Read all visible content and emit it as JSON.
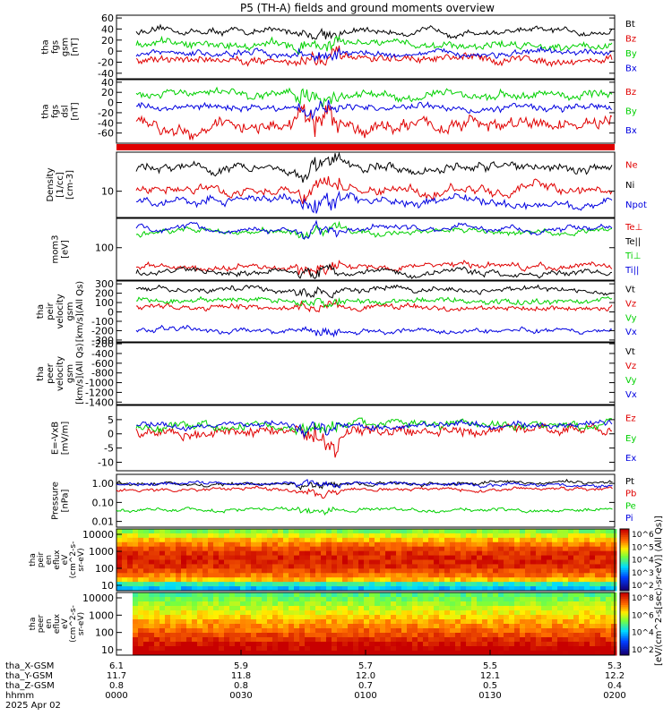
{
  "title": "P5 (TH-A) fields and ground moments overview",
  "colors": {
    "black": "#000000",
    "red": "#e00000",
    "green": "#00d000",
    "blue": "#0000e0"
  },
  "chart_data": {
    "type": "line",
    "x_range": [
      "2025-04-02 00:00",
      "2025-04-02 02:00"
    ],
    "x_ticks": [
      "0000",
      "0030",
      "0100",
      "0130",
      "0200"
    ],
    "ephemeris": [
      {
        "label": "tha_X-GSM",
        "values": [
          "6.1",
          "5.9",
          "5.7",
          "5.5",
          "5.3"
        ]
      },
      {
        "label": "tha_Y-GSM",
        "values": [
          "11.7",
          "11.8",
          "12.0",
          "12.1",
          "12.2"
        ]
      },
      {
        "label": "tha_Z-GSM",
        "values": [
          "0.8",
          "0.8",
          "0.7",
          "0.5",
          "0.4"
        ]
      },
      {
        "label": "hhmm",
        "values": [
          "0000",
          "0030",
          "0100",
          "0130",
          "0200"
        ]
      }
    ],
    "date_label": "2025 Apr 02",
    "spectrogram_colorbar_label": "[eV/(cm^2-s[sec)-sr-eV)] (All Qs)]",
    "panels": [
      {
        "ylabel": [
          "tha",
          "fgs",
          "gsm",
          "[nT]"
        ],
        "ylim": [
          -50,
          65
        ],
        "yticks": [
          "60",
          "40",
          "20",
          "0",
          "-20",
          "-40"
        ],
        "series": [
          {
            "name": "Bt",
            "color": "black",
            "base": 35,
            "amp": 8
          },
          {
            "name": "Bz",
            "color": "red",
            "base": -15,
            "amp": 10
          },
          {
            "name": "By",
            "color": "green",
            "base": 12,
            "amp": 10
          },
          {
            "name": "Bx",
            "color": "blue",
            "base": -5,
            "amp": 8
          }
        ]
      },
      {
        "ylabel": [
          "tha",
          "fgs",
          "dsl",
          "[nT]"
        ],
        "ylim": [
          -80,
          45
        ],
        "yticks": [
          "40",
          "20",
          "0",
          "-20",
          "-40",
          "-60"
        ],
        "series": [
          {
            "name": "Bz",
            "color": "red",
            "base": -45,
            "amp": 18
          },
          {
            "name": "By",
            "color": "green",
            "base": 15,
            "amp": 12
          },
          {
            "name": "Bx",
            "color": "blue",
            "base": -10,
            "amp": 10
          }
        ]
      },
      {
        "ylabel": [
          "Density",
          "[1/cc]",
          "[cm-3]"
        ],
        "ylim": [
          3,
          60
        ],
        "log": true,
        "yticks": [
          "10"
        ],
        "series": [
          {
            "name": "Ne",
            "color": "red",
            "base": 10.5,
            "amp": 0.6
          },
          {
            "name": "Ni",
            "color": "black",
            "base": 30,
            "amp": 7
          },
          {
            "name": "Npot",
            "color": "blue",
            "base": 6.5,
            "amp": 0.5
          }
        ]
      },
      {
        "ylabel": [
          "mom3",
          "[eV]"
        ],
        "ylim": [
          10,
          800
        ],
        "log": true,
        "yticks": [
          "100"
        ],
        "series": [
          {
            "name": "Te⊥",
            "color": "red",
            "base": 25,
            "amp": 4
          },
          {
            "name": "Te||",
            "color": "black",
            "base": 18,
            "amp": 4
          },
          {
            "name": "Ti⊥",
            "color": "green",
            "base": 300,
            "amp": 80
          },
          {
            "name": "Ti||",
            "color": "blue",
            "base": 380,
            "amp": 50
          }
        ]
      },
      {
        "ylabel": [
          "tha",
          "peir",
          "velocity",
          "gsm",
          "[km/s](All Qs)"
        ],
        "ylim": [
          -320,
          330
        ],
        "yticks": [
          "300",
          "200",
          "100",
          "0",
          "-100",
          "-200",
          "-300"
        ],
        "series": [
          {
            "name": "Vt",
            "color": "black",
            "base": 240,
            "amp": 40
          },
          {
            "name": "Vz",
            "color": "red",
            "base": 50,
            "amp": 40
          },
          {
            "name": "Vy",
            "color": "green",
            "base": 120,
            "amp": 40
          },
          {
            "name": "Vx",
            "color": "blue",
            "base": -200,
            "amp": 35
          }
        ]
      },
      {
        "ylabel": [
          "tha",
          "peer",
          "velocity",
          "gsm",
          "[km/s](All Qs)"
        ],
        "ylim": [
          -1450,
          -180
        ],
        "yticks": [
          "-200",
          "-400",
          "-600",
          "-800",
          "-1000",
          "-1200",
          "-1400"
        ],
        "series": [
          {
            "name": "Vt",
            "color": "black"
          },
          {
            "name": "Vz",
            "color": "red"
          },
          {
            "name": "Vy",
            "color": "green"
          },
          {
            "name": "Vx",
            "color": "blue"
          }
        ]
      },
      {
        "ylabel": [
          "E=-VxB",
          "[mV/m]"
        ],
        "ylim": [
          -13,
          10
        ],
        "yticks": [
          "5",
          "0",
          "-5",
          "-10"
        ],
        "series": [
          {
            "name": "Ez",
            "color": "red",
            "base": 1,
            "amp": 2.5
          },
          {
            "name": "Ey",
            "color": "green",
            "base": 3,
            "amp": 2
          },
          {
            "name": "Ex",
            "color": "blue",
            "base": 3,
            "amp": 1.5
          }
        ]
      },
      {
        "ylabel": [
          "Pressure",
          "[nPa]"
        ],
        "ylim": [
          0.005,
          3
        ],
        "log": true,
        "yticks": [
          "1.00",
          "0.10",
          "0.01"
        ],
        "series": [
          {
            "name": "Pt",
            "color": "black",
            "base": 1.0,
            "amp": 0.15
          },
          {
            "name": "Pb",
            "color": "red",
            "base": 0.5,
            "amp": 0.1
          },
          {
            "name": "Pe",
            "color": "green",
            "base": 0.04,
            "amp": 0.005
          },
          {
            "name": "Pi",
            "color": "blue",
            "base": 0.9,
            "amp": 0.1
          }
        ]
      }
    ],
    "spectrograms": [
      {
        "ylabel": [
          "tha",
          "peir",
          "en",
          "eflux",
          "eV",
          "(cm^2-s-",
          "sr-eV)"
        ],
        "yticks": [
          "10000",
          "1000",
          "100",
          "10"
        ],
        "cbar_ticks": [
          "10^6",
          "10^5",
          "10^4",
          "10^3",
          "10^2"
        ]
      },
      {
        "ylabel": [
          "tha",
          "peer",
          "en",
          "eflux",
          "eV",
          "(cm^2-s-",
          "sr-eV)"
        ],
        "yticks": [
          "10000",
          "1000",
          "100",
          "10"
        ],
        "cbar_ticks": [
          "10^8",
          "10^6",
          "10^4",
          "10^2"
        ]
      }
    ]
  }
}
